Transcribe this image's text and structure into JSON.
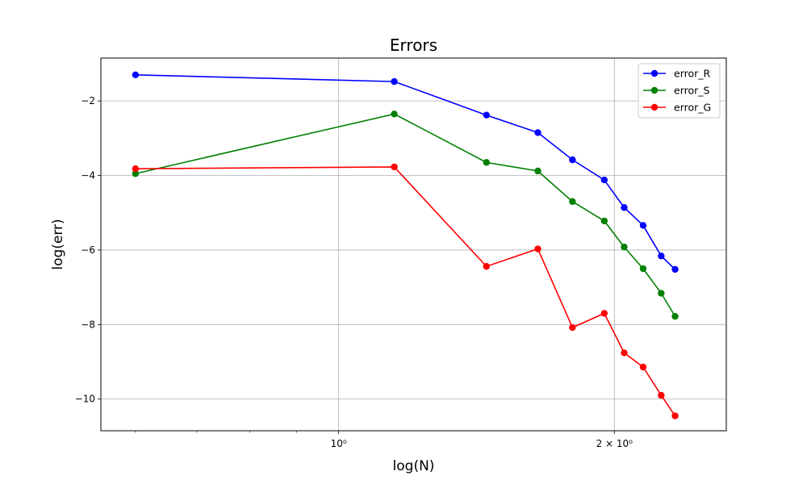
{
  "chart_data": {
    "type": "line",
    "title": "Errors",
    "xlabel": "log(N)",
    "ylabel": "log(err)",
    "x_scale": "log",
    "xlim": [
      0.55,
      2.65
    ],
    "ylim": [
      -10.85,
      -0.85
    ],
    "grid": true,
    "legend_position": "top-right",
    "x": [
      0.6,
      1.15,
      1.45,
      1.65,
      1.8,
      1.95,
      2.05,
      2.15,
      2.25,
      2.33
    ],
    "x_ticks": [
      {
        "value": 1,
        "label": "10⁰"
      },
      {
        "value": 2,
        "label": "2 × 10⁰"
      }
    ],
    "y_ticks": [
      {
        "value": -2,
        "label": "−2"
      },
      {
        "value": -4,
        "label": "−4"
      },
      {
        "value": -6,
        "label": "−6"
      },
      {
        "value": -8,
        "label": "−8"
      },
      {
        "value": -10,
        "label": "−10"
      }
    ],
    "series": [
      {
        "name": "error_R",
        "color": "#0000ff",
        "values": [
          -1.3,
          -1.48,
          -2.38,
          -2.85,
          -3.58,
          -4.12,
          -4.86,
          -5.34,
          -6.16,
          -6.52
        ]
      },
      {
        "name": "error_S",
        "color": "#008000",
        "values": [
          -3.95,
          -2.35,
          -3.65,
          -3.88,
          -4.7,
          -5.22,
          -5.92,
          -6.5,
          -7.16,
          -7.78
        ]
      },
      {
        "name": "error_G",
        "color": "#ff0000",
        "values": [
          -3.82,
          -3.77,
          -6.44,
          -5.97,
          -8.08,
          -7.7,
          -8.76,
          -9.14,
          -9.9,
          -10.45
        ]
      }
    ]
  }
}
